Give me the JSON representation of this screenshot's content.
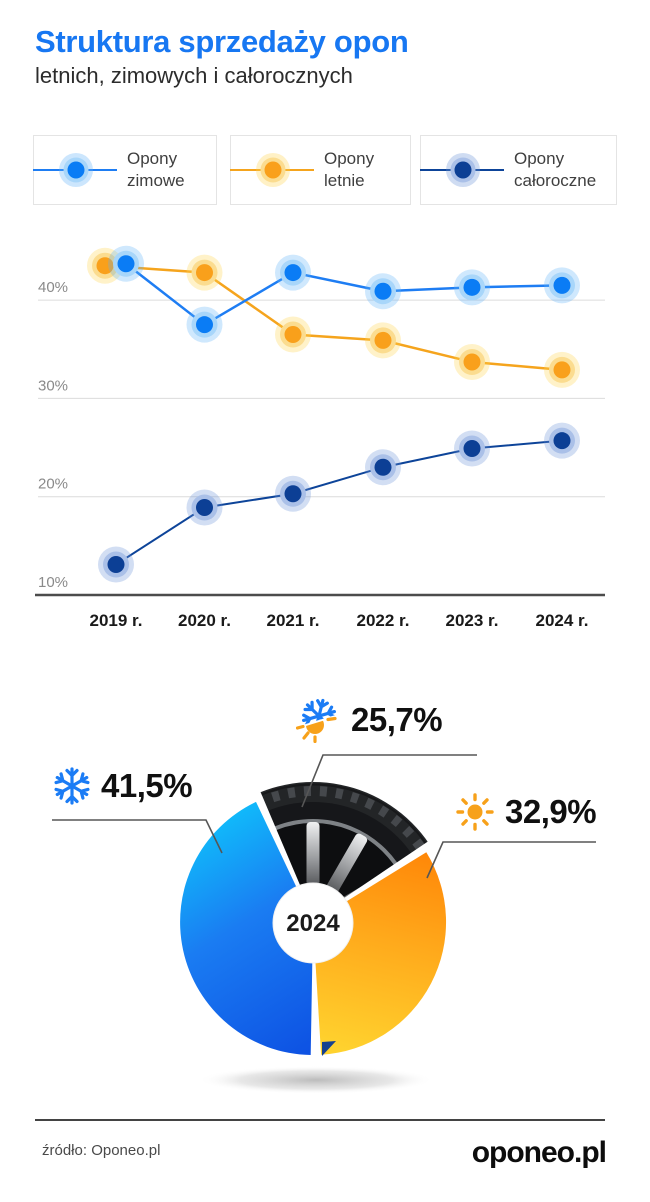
{
  "header": {
    "title": "Struktura sprzedaży opon",
    "subtitle": "letnich, zimowych i całorocznych"
  },
  "legend": {
    "items": [
      {
        "label_line1": "Opony",
        "label_line2": "zimowe",
        "line_color": "#1e7df3",
        "dot_color": "#0a7cf5",
        "halo_color": "#a8d6fa",
        "glow_color": "#5fb2f8"
      },
      {
        "label_line1": "Opony",
        "label_line2": "letnie",
        "line_color": "#f5a41d",
        "dot_color": "#f9a01b",
        "halo_color": "#fbdc8f",
        "glow_color": "#ffd34d"
      },
      {
        "label_line1": "Opony",
        "label_line2": "całoroczne",
        "line_color": "#0d4499",
        "dot_color": "#0c3f95",
        "halo_color": "#aac0e8",
        "glow_color": "#6a93d8"
      }
    ]
  },
  "chart_data": [
    {
      "type": "line",
      "x": [
        "2019 r.",
        "2020 r.",
        "2021 r.",
        "2022 r.",
        "2023 r.",
        "2024 r."
      ],
      "y_unit": "%",
      "ylim": [
        10,
        47
      ],
      "grid": true,
      "yticks": [
        {
          "value": 40,
          "label": "40%"
        },
        {
          "value": 30,
          "label": "30%"
        },
        {
          "value": 20,
          "label": "20%"
        },
        {
          "value": 10,
          "label": "10%"
        }
      ],
      "series": [
        {
          "name": "Opony zimowe",
          "values": [
            43.7,
            37.5,
            42.8,
            40.9,
            41.3,
            41.5
          ],
          "line_color": "#1e7df3",
          "dot_color": "#0a7cf5",
          "halo_color": "#a8d6fa",
          "glow_color": "#5fb2f8"
        },
        {
          "name": "Opony letnie",
          "values": [
            43.5,
            42.8,
            36.5,
            35.9,
            33.7,
            32.9
          ],
          "line_color": "#f5a41d",
          "dot_color": "#f9a01b",
          "halo_color": "#fbdc8f",
          "glow_color": "#ffd34d"
        },
        {
          "name": "Opony całoroczne",
          "values": [
            13.1,
            18.9,
            20.3,
            23.0,
            24.9,
            25.7
          ],
          "line_color": "#0d4499",
          "dot_color": "#0c3f95",
          "halo_color": "#aac0e8",
          "glow_color": "#6a93d8"
        }
      ]
    },
    {
      "type": "pie",
      "center_year": "2024",
      "slices": [
        {
          "name": "Opony zimowe",
          "value": 41.5,
          "value_label": "41,5%",
          "icon": "snowflake-icon",
          "color_start": "#0cd6fe",
          "color_end": "#0b49e0"
        },
        {
          "name": "Opony letnie",
          "value": 32.9,
          "value_label": "32,9%",
          "icon": "sun-icon",
          "color_start": "#ff7e03",
          "color_end": "#ffd22e"
        },
        {
          "name": "Opony całoroczne",
          "value": 25.7,
          "value_label": "25,7%",
          "icon": "snowflake-sun-icon"
        }
      ]
    }
  ],
  "footer": {
    "source": "źródło: Oponeo.pl",
    "logo": "oponeo.pl"
  }
}
